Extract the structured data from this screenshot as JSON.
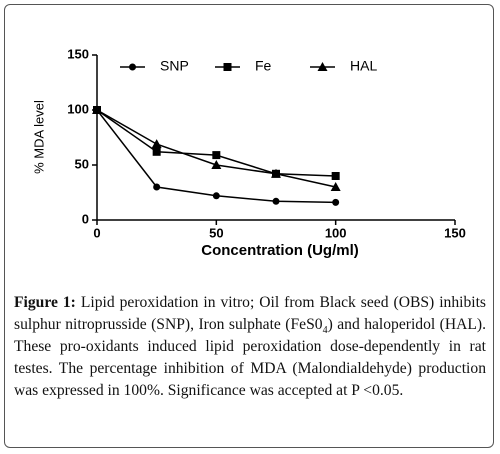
{
  "chart_data": {
    "type": "line",
    "x_label": "Concentration (Ug/ml)",
    "y_label": "% MDA level",
    "x": [
      0,
      25,
      50,
      75,
      100
    ],
    "series": [
      {
        "name": "SNP",
        "color": "#000000",
        "marker": "circle",
        "values": [
          100,
          30,
          22,
          17,
          16
        ]
      },
      {
        "name": "Fe",
        "color": "#000000",
        "marker": "square",
        "values": [
          100,
          62,
          59,
          42,
          40
        ]
      },
      {
        "name": "HAL",
        "color": "#000000",
        "marker": "triangle",
        "values": [
          100,
          69,
          50,
          42,
          30
        ]
      }
    ],
    "xlim": [
      0,
      150
    ],
    "xticks": [
      0,
      50,
      100,
      150
    ],
    "ylim": [
      0,
      150
    ],
    "yticks": [
      0,
      50,
      100,
      150
    ],
    "legend": "top",
    "grid": false
  },
  "caption": {
    "label": "Figure 1:",
    "text_1": "Lipid peroxidation in vitro; Oil from Black seed (OBS) inhibits sulphur nitroprusside (SNP), Iron sulphate (FeS0",
    "subscript": "4",
    "text_2": ") and haloperidol (HAL). These pro-oxidants induced lipid peroxidation dose-dependently in rat testes. The percentage inhibition of MDA (Malondialdehyde) production was expressed in 100%. Significance was accepted at P <0.05."
  }
}
